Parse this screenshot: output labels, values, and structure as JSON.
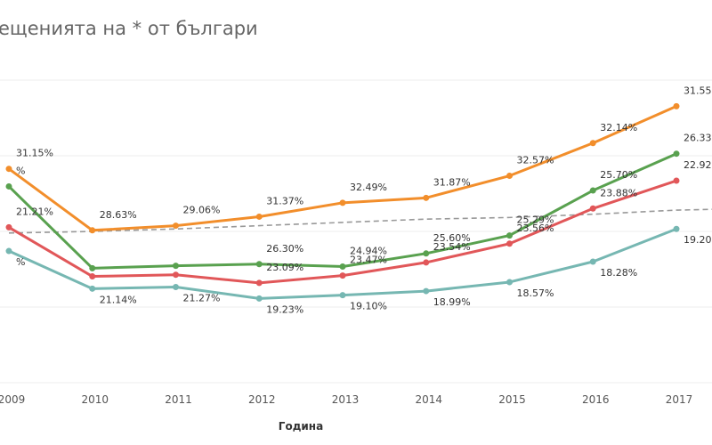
{
  "chart_data": {
    "type": "line",
    "title": "ещенията на  * от българи",
    "xlabel": "Година",
    "ylabel": "",
    "categories": [
      "2009",
      "2010",
      "2011",
      "2012",
      "2013",
      "2014",
      "2015",
      "2016",
      "2017"
    ],
    "ylim": [
      5,
      42
    ],
    "grid": true,
    "series": [
      {
        "color": "#f28e2b",
        "values": [
          31.15,
          23.63,
          24.2,
          25.3,
          27.0,
          27.6,
          30.3,
          34.3,
          38.8
        ],
        "labels": [
          "31.15%",
          "28.63%",
          "29.06%",
          "31.37%",
          "32.49%",
          "31.87%",
          "32.57%",
          "32.14%",
          "31.55%"
        ]
      },
      {
        "color": "#59a14f",
        "values": [
          29.0,
          19.0,
          19.3,
          19.5,
          19.2,
          20.8,
          23.0,
          28.5,
          33.0
        ],
        "labels": [
          "%",
          "",
          "",
          "26.30%",
          "24.94%",
          "25.60%",
          "25.29%",
          "25.70%",
          "26.33%"
        ]
      },
      {
        "color": "#e15759",
        "values": [
          24.0,
          18.0,
          18.2,
          17.2,
          18.1,
          19.7,
          22.0,
          26.3,
          29.7
        ],
        "labels": [
          "21.21%",
          "",
          "",
          "23.09%",
          "23.47%",
          "23.54%",
          "23.56%",
          "23.88%",
          "22.92%"
        ]
      },
      {
        "color": "#76b7b2",
        "values": [
          21.1,
          16.5,
          16.7,
          15.3,
          15.7,
          16.2,
          17.3,
          19.8,
          23.8
        ],
        "labels": [
          "%",
          "21.14%",
          "21.27%",
          "19.23%",
          "19.10%",
          "18.99%",
          "18.57%",
          "18.28%",
          "19.20%"
        ]
      }
    ],
    "trend": {
      "color": "#999999",
      "values": [
        23.3,
        23.5,
        23.8,
        24.2,
        24.6,
        25.0,
        25.2,
        25.6,
        26.1
      ]
    }
  }
}
